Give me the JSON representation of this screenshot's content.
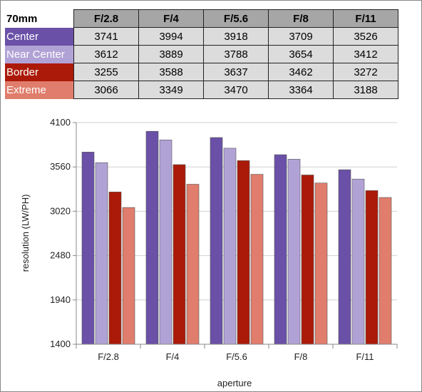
{
  "table": {
    "title": "70mm",
    "columns": [
      "F/2.8",
      "F/4",
      "F/5.6",
      "F/8",
      "F/11"
    ],
    "rows": [
      {
        "label": "Center",
        "color": "#6a50a7",
        "values": [
          "3741",
          "3994",
          "3918",
          "3709",
          "3526"
        ]
      },
      {
        "label": "Near Center",
        "color": "#b1a2d6",
        "values": [
          "3612",
          "3889",
          "3788",
          "3654",
          "3412"
        ]
      },
      {
        "label": "Border",
        "color": "#ab1a08",
        "values": [
          "3255",
          "3588",
          "3637",
          "3462",
          "3272"
        ]
      },
      {
        "label": "Extreme",
        "color": "#e07d6c",
        "values": [
          "3066",
          "3349",
          "3470",
          "3364",
          "3188"
        ]
      }
    ]
  },
  "chart_data": {
    "type": "bar",
    "categories": [
      "F/2.8",
      "F/4",
      "F/5.6",
      "F/8",
      "F/11"
    ],
    "series": [
      {
        "name": "Center",
        "color": "#6a50a7",
        "values": [
          3741,
          3994,
          3918,
          3709,
          3526
        ]
      },
      {
        "name": "Near Center",
        "color": "#b1a2d6",
        "values": [
          3612,
          3889,
          3788,
          3654,
          3412
        ]
      },
      {
        "name": "Border",
        "color": "#ab1a08",
        "values": [
          3255,
          3588,
          3637,
          3462,
          3272
        ]
      },
      {
        "name": "Extreme",
        "color": "#e07d6c",
        "values": [
          3066,
          3349,
          3470,
          3364,
          3188
        ]
      }
    ],
    "xlabel": "aperture",
    "ylabel": "resolution (LW/PH)",
    "ylim": [
      1400,
      4100
    ],
    "yticks": [
      "1400",
      "1940",
      "2480",
      "3020",
      "3560",
      "4100"
    ],
    "grid": true,
    "legend": "none"
  }
}
